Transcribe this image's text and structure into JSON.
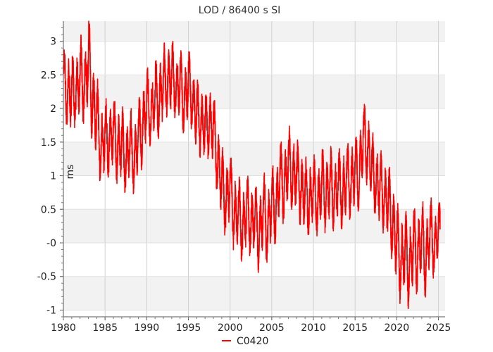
{
  "chart_data": {
    "type": "line",
    "title": "LOD / 86400 s SI",
    "ylabel": "ms",
    "xlabel": "",
    "xlim": [
      1980,
      2025.8
    ],
    "ylim": [
      -1.1,
      3.3
    ],
    "x_ticks": [
      1980,
      1985,
      1990,
      1995,
      2000,
      2005,
      2010,
      2015,
      2020,
      2025
    ],
    "x_tick_labels": [
      "1980",
      "1985",
      "1990",
      "1995",
      "2000",
      "2005",
      "2010",
      "2015",
      "2020",
      "2025"
    ],
    "y_ticks": [
      3,
      2.5,
      2,
      1.5,
      1,
      0.5,
      0,
      -0.5,
      -1
    ],
    "y_tick_labels": [
      "3",
      "2.5",
      "2",
      "1.5",
      "1",
      "0.5",
      "-0",
      "-0.5",
      "-1"
    ],
    "grid": true,
    "legend_position": "bottom-center",
    "series": [
      {
        "name": "C0420",
        "color": "#ff0000",
        "x": [
          1980.0,
          1980.5,
          1981.0,
          1981.5,
          1982.0,
          1982.5,
          1983.0,
          1983.5,
          1984.0,
          1984.5,
          1985.0,
          1985.5,
          1986.0,
          1986.5,
          1987.0,
          1987.5,
          1988.0,
          1988.5,
          1989.0,
          1989.5,
          1990.0,
          1990.5,
          1991.0,
          1991.5,
          1992.0,
          1992.5,
          1993.0,
          1993.5,
          1994.0,
          1994.5,
          1995.0,
          1995.5,
          1996.0,
          1996.5,
          1997.0,
          1997.5,
          1998.0,
          1998.5,
          1999.0,
          1999.5,
          2000.0,
          2000.5,
          2001.0,
          2001.5,
          2002.0,
          2002.5,
          2003.0,
          2003.5,
          2004.0,
          2004.5,
          2005.0,
          2005.5,
          2006.0,
          2006.5,
          2007.0,
          2007.5,
          2008.0,
          2008.5,
          2009.0,
          2009.5,
          2010.0,
          2010.5,
          2011.0,
          2011.5,
          2012.0,
          2012.5,
          2013.0,
          2013.5,
          2014.0,
          2014.5,
          2015.0,
          2015.5,
          2016.0,
          2016.5,
          2017.0,
          2017.5,
          2018.0,
          2018.5,
          2019.0,
          2019.5,
          2020.0,
          2020.5,
          2021.0,
          2021.5,
          2022.0,
          2022.5,
          2023.0,
          2023.5,
          2024.0,
          2024.5,
          2025.0,
          2025.2
        ],
        "y": [
          2.6,
          2.1,
          2.4,
          2.1,
          2.6,
          2.2,
          2.9,
          2.0,
          2.0,
          1.3,
          1.7,
          1.4,
          1.8,
          1.3,
          1.6,
          1.1,
          1.6,
          1.1,
          1.7,
          1.6,
          2.2,
          1.8,
          2.3,
          2.0,
          2.5,
          2.3,
          2.6,
          2.2,
          2.5,
          2.0,
          2.5,
          2.0,
          2.0,
          1.7,
          1.8,
          1.7,
          1.8,
          1.1,
          1.0,
          0.5,
          1.0,
          0.3,
          0.6,
          0.1,
          0.6,
          0.2,
          0.5,
          0.0,
          0.6,
          0.1,
          0.7,
          0.4,
          1.1,
          0.7,
          1.3,
          0.9,
          1.1,
          0.7,
          0.8,
          0.5,
          0.9,
          0.5,
          1.0,
          0.6,
          1.0,
          0.6,
          1.0,
          0.6,
          1.1,
          0.8,
          1.2,
          0.9,
          1.7,
          1.3,
          1.2,
          0.8,
          0.9,
          0.6,
          0.7,
          0.2,
          0.1,
          -0.4,
          0.0,
          -0.5,
          0.1,
          -0.3,
          0.2,
          -0.4,
          0.3,
          -0.2,
          0.3,
          0.2
        ],
        "amp": [
          0.35,
          0.45,
          0.5,
          0.4,
          0.5,
          0.45,
          0.6,
          0.5,
          0.5,
          0.45,
          0.45,
          0.45,
          0.45,
          0.45,
          0.45,
          0.4,
          0.45,
          0.4,
          0.45,
          0.45,
          0.45,
          0.4,
          0.45,
          0.45,
          0.45,
          0.4,
          0.45,
          0.4,
          0.45,
          0.4,
          0.45,
          0.4,
          0.45,
          0.4,
          0.45,
          0.4,
          0.45,
          0.45,
          0.45,
          0.45,
          0.45,
          0.45,
          0.45,
          0.45,
          0.45,
          0.45,
          0.45,
          0.45,
          0.45,
          0.45,
          0.45,
          0.45,
          0.45,
          0.45,
          0.45,
          0.45,
          0.45,
          0.45,
          0.45,
          0.45,
          0.45,
          0.45,
          0.45,
          0.45,
          0.45,
          0.45,
          0.45,
          0.45,
          0.45,
          0.45,
          0.45,
          0.45,
          0.45,
          0.45,
          0.45,
          0.45,
          0.45,
          0.45,
          0.45,
          0.45,
          0.5,
          0.5,
          0.5,
          0.5,
          0.5,
          0.5,
          0.5,
          0.5,
          0.4,
          0.4,
          0.35,
          0.3
        ]
      }
    ]
  }
}
